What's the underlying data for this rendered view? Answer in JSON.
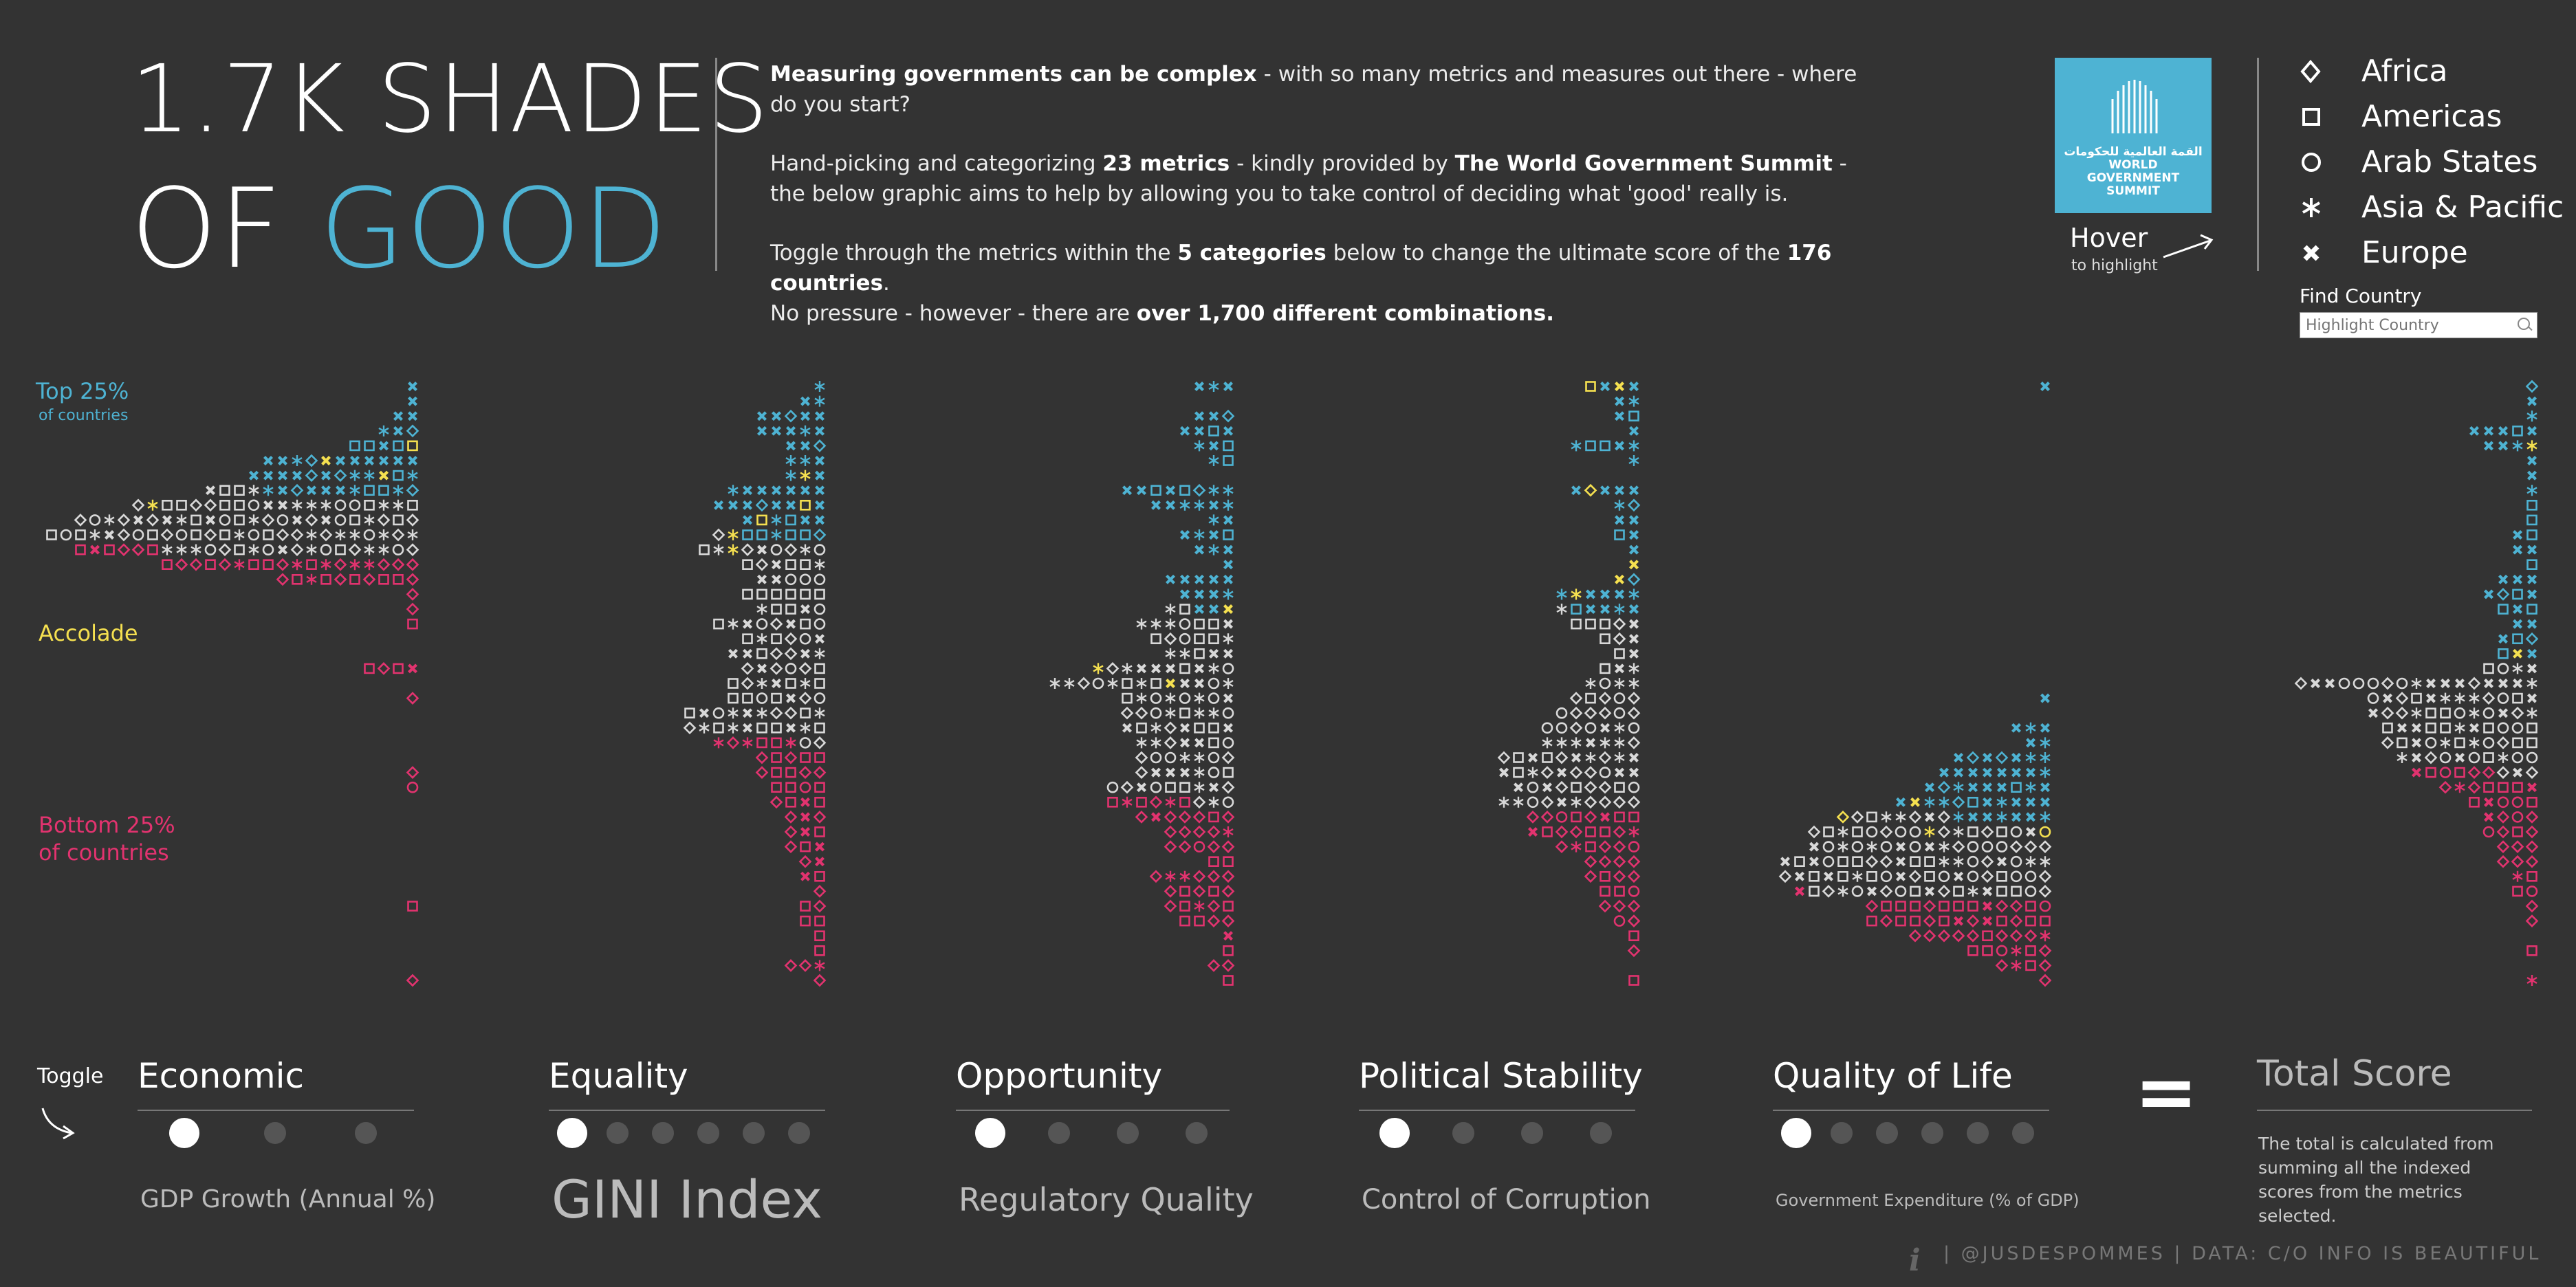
{
  "header": {
    "title_line1": "1.7K SHADES",
    "title_line2_a": "OF ",
    "title_line2_b": "GOOD",
    "intro": {
      "p1_bold": "Measuring governments can be complex",
      "p1_rest": " - with so many metrics and measures out there - where do you start?",
      "p2_a": "Hand-picking and categorizing ",
      "p2_bold1": "23 metrics",
      "p2_b": " - kindly provided by ",
      "p2_bold2": "The World Government Summit",
      "p2_c": " - the below graphic aims to help by allowing you to take control of deciding what 'good' really is.",
      "p3_a": "Toggle through the metrics within the ",
      "p3_bold1": "5 categories",
      "p3_b": " below to change the ultimate score of the ",
      "p3_bold2": "176 countries",
      "p3_c": ".",
      "p3_line2_a": "No pressure - however - there are ",
      "p3_line2_bold": "over 1,700 different combinations."
    },
    "logo_lines": [
      "القمة العالمية للحكومات",
      "WORLD",
      "GOVERNMENT",
      "SUMMIT"
    ],
    "hover_label": "Hover",
    "hover_sub": "to highlight"
  },
  "legend": [
    {
      "label": "Africa",
      "shape": "diamond"
    },
    {
      "label": "Americas",
      "shape": "square"
    },
    {
      "label": "Arab States",
      "shape": "circle"
    },
    {
      "label": "Asia & Pacific",
      "shape": "asterisk"
    },
    {
      "label": "Europe",
      "shape": "x"
    }
  ],
  "find_country": {
    "label": "Find Country",
    "placeholder": "Highlight Country"
  },
  "annotations": {
    "top25": "Top 25%",
    "top25_sub": "of countries",
    "accolade": "Accolade",
    "bottom25_line1": "Bottom 25%",
    "bottom25_line2": "of countries"
  },
  "toggle_label": "Toggle",
  "categories": [
    {
      "name": "Economic",
      "metric": "GDP Growth (Annual %)",
      "options": 3,
      "selected": 0
    },
    {
      "name": "Equality",
      "metric": "GINI Index",
      "options": 6,
      "selected": 0
    },
    {
      "name": "Opportunity",
      "metric": "Regulatory Quality",
      "options": 4,
      "selected": 0
    },
    {
      "name": "Political Stability",
      "metric": "Control of Corruption",
      "options": 4,
      "selected": 0
    },
    {
      "name": "Quality of Life",
      "metric": "Government Expenditure (% of GDP)",
      "options": 6,
      "selected": 0
    }
  ],
  "equals": "=",
  "total": {
    "title": "Total Score",
    "note": "The total is calculated from summing all the indexed scores from the metrics selected."
  },
  "footer": {
    "info_icon": "i",
    "text": "|  @JUSDESPOMMES  |  DATA: C/O INFO IS BEAUTIFUL"
  },
  "colors": {
    "background": "#333333",
    "top_quartile": "#4eb3d3",
    "bottom_quartile": "#e2336f",
    "middle": "#d9d9d9",
    "accolade": "#f5e050"
  },
  "chart_data": {
    "type": "scatter",
    "description_encoding": "beeswarm per metric; each row lists mark count by band",
    "panels": [
      {
        "metric": "GDP Growth (Annual %)",
        "rows": [
          1,
          1,
          2,
          3,
          5,
          11,
          12,
          15,
          20,
          24,
          26,
          24,
          18,
          10,
          1,
          1,
          1,
          0,
          0,
          4,
          0,
          1,
          0,
          0,
          0,
          0,
          1,
          1,
          0,
          0,
          0,
          0,
          0,
          0,
          0,
          1,
          0,
          0,
          0,
          0,
          1
        ]
      },
      {
        "metric": "GINI Index",
        "rows": [
          1,
          2,
          5,
          5,
          3,
          3,
          3,
          7,
          8,
          6,
          8,
          9,
          6,
          5,
          6,
          5,
          8,
          6,
          7,
          6,
          7,
          7,
          10,
          10,
          8,
          5,
          5,
          4,
          4,
          3,
          3,
          3,
          2,
          2,
          1,
          2,
          2,
          1,
          1,
          3,
          1
        ]
      },
      {
        "metric": "Regulatory Quality",
        "rows": [
          3,
          0,
          3,
          4,
          3,
          2,
          0,
          8,
          6,
          2,
          4,
          3,
          1,
          5,
          4,
          5,
          7,
          6,
          5,
          10,
          13,
          8,
          8,
          8,
          7,
          7,
          7,
          9,
          9,
          7,
          5,
          5,
          2,
          6,
          5,
          5,
          4,
          1,
          1,
          2,
          1
        ]
      },
      {
        "metric": "Political Stability",
        "rows": [
          4,
          2,
          2,
          1,
          5,
          1,
          0,
          5,
          2,
          2,
          2,
          1,
          1,
          2,
          6,
          6,
          5,
          3,
          2,
          3,
          4,
          5,
          6,
          7,
          7,
          10,
          10,
          9,
          10,
          8,
          8,
          6,
          4,
          4,
          3,
          3,
          2,
          1,
          1,
          0,
          1
        ]
      },
      {
        "metric": "Government Expenditure (% of GDP)",
        "rows": [
          1,
          0,
          0,
          0,
          0,
          0,
          0,
          0,
          0,
          0,
          0,
          0,
          0,
          0,
          0,
          0,
          0,
          0,
          0,
          0,
          0,
          1,
          0,
          3,
          2,
          7,
          8,
          9,
          11,
          15,
          17,
          17,
          19,
          19,
          18,
          13,
          13,
          10,
          6,
          4,
          1
        ]
      },
      {
        "metric": "Total Score",
        "rows": [
          1,
          1,
          1,
          5,
          4,
          1,
          1,
          1,
          1,
          1,
          2,
          2,
          1,
          3,
          4,
          3,
          2,
          3,
          3,
          4,
          17,
          12,
          12,
          11,
          11,
          10,
          9,
          7,
          5,
          4,
          4,
          3,
          3,
          2,
          2,
          1,
          1,
          0,
          1,
          0,
          1
        ]
      }
    ]
  }
}
